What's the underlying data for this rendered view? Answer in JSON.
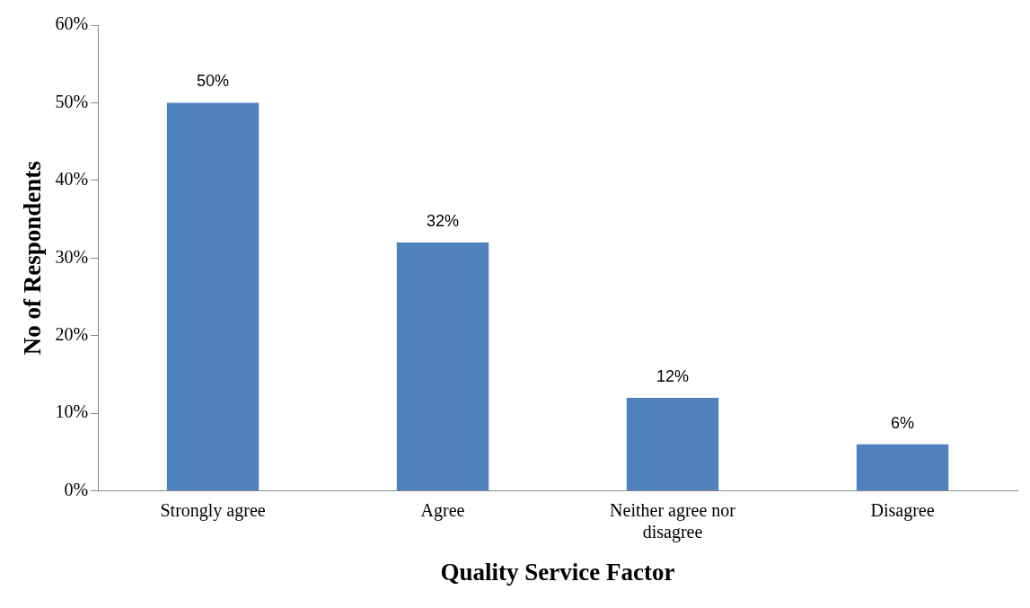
{
  "chart_data": {
    "type": "bar",
    "xlabel": "Quality Service Factor",
    "ylabel": "No of Respondents",
    "categories": [
      "Strongly agree",
      "Agree",
      "Neither agree nor disagree",
      "Disagree"
    ],
    "values": [
      50,
      32,
      12,
      6
    ],
    "color": "#4f81bd",
    "value_labels": [
      "50%",
      "32%",
      "12%",
      "6%"
    ],
    "ylim": [
      0,
      60
    ],
    "yticks": [
      {
        "value": 0,
        "label": "0%"
      },
      {
        "value": 10,
        "label": "10%"
      },
      {
        "value": 20,
        "label": "20%"
      },
      {
        "value": 30,
        "label": "30%"
      },
      {
        "value": 40,
        "label": "40%"
      },
      {
        "value": 50,
        "label": "50%"
      },
      {
        "value": 60,
        "label": "60%"
      }
    ],
    "grid": false,
    "legend": false
  }
}
